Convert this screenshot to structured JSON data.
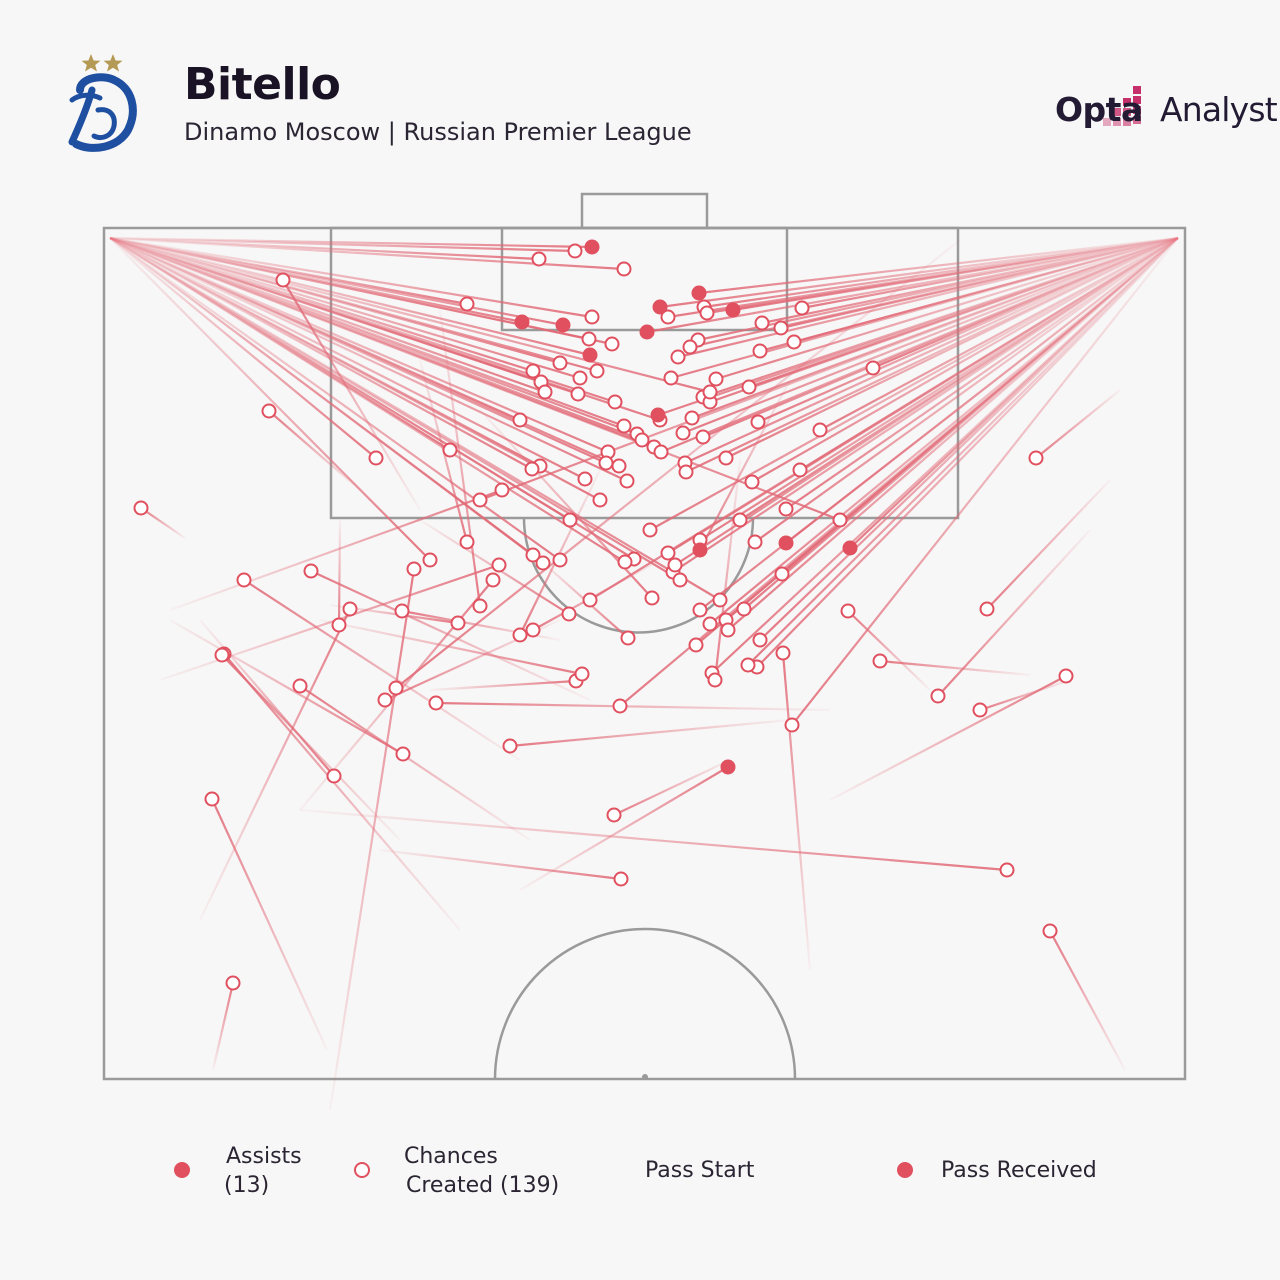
{
  "header": {
    "player": "Bitello",
    "subtitle": "Dinamo Moscow | Russian Premier League",
    "brand_a": "Opta",
    "brand_b": "Analyst"
  },
  "colors": {
    "accent": "#e0505f",
    "line": "#e26a77",
    "pitch_lines": "#9a9a9a",
    "club_blue": "#1f4fa0",
    "star_gold": "#b59a55",
    "brand_magenta": "#c6306a"
  },
  "legend": {
    "assists_label": "Assists",
    "assists_count": "(13)",
    "chances_label": "Chances",
    "chances_count": "Created (139)",
    "pass_start": "Pass Start",
    "pass_received": "Pass Received"
  },
  "chart_data": {
    "type": "scatter",
    "series": [
      {
        "name": "Assists",
        "points": [
          [
            592,
            247,
            110,
            238
          ],
          [
            522,
            322,
            110,
            238
          ],
          [
            563,
            325,
            110,
            238
          ],
          [
            590,
            355,
            110,
            238
          ],
          [
            660,
            307,
            1178,
            238
          ],
          [
            699,
            293,
            1178,
            238
          ],
          [
            733,
            310,
            1178,
            238
          ],
          [
            647,
            332,
            1178,
            238
          ],
          [
            658,
            415,
            1178,
            238
          ],
          [
            700,
            550,
            790,
            380
          ],
          [
            786,
            543,
            1178,
            238
          ],
          [
            850,
            548,
            1178,
            238
          ],
          [
            728,
            767,
            520,
            890
          ]
        ]
      },
      {
        "name": "Chances Created",
        "points": [
          [
            539,
            259,
            110,
            238
          ],
          [
            575,
            251,
            110,
            238
          ],
          [
            624,
            269,
            110,
            238
          ],
          [
            283,
            280,
            420,
            510
          ],
          [
            467,
            304,
            110,
            238
          ],
          [
            592,
            317,
            110,
            238
          ],
          [
            668,
            317,
            1178,
            238
          ],
          [
            704,
            307,
            1178,
            238
          ],
          [
            707,
            313,
            1178,
            238
          ],
          [
            762,
            323,
            1178,
            238
          ],
          [
            781,
            328,
            1178,
            238
          ],
          [
            802,
            308,
            1178,
            238
          ],
          [
            794,
            342,
            1178,
            238
          ],
          [
            760,
            351,
            1178,
            238
          ],
          [
            698,
            340,
            1178,
            238
          ],
          [
            690,
            347,
            1178,
            238
          ],
          [
            678,
            357,
            1178,
            238
          ],
          [
            612,
            344,
            110,
            238
          ],
          [
            589,
            339,
            110,
            238
          ],
          [
            560,
            363,
            110,
            238
          ],
          [
            533,
            371,
            110,
            238
          ],
          [
            541,
            382,
            110,
            238
          ],
          [
            545,
            392,
            110,
            238
          ],
          [
            578,
            394,
            110,
            238
          ],
          [
            580,
            378,
            110,
            238
          ],
          [
            597,
            371,
            110,
            238
          ],
          [
            671,
            378,
            1178,
            238
          ],
          [
            716,
            379,
            1178,
            238
          ],
          [
            749,
            387,
            1178,
            238
          ],
          [
            703,
            397,
            1178,
            238
          ],
          [
            710,
            402,
            1178,
            238
          ],
          [
            692,
            418,
            1178,
            238
          ],
          [
            758,
            422,
            1178,
            238
          ],
          [
            873,
            368,
            1178,
            238
          ],
          [
            615,
            402,
            110,
            238
          ],
          [
            624,
            426,
            110,
            238
          ],
          [
            637,
            434,
            110,
            238
          ],
          [
            683,
            433,
            1178,
            238
          ],
          [
            703,
            437,
            1178,
            238
          ],
          [
            654,
            447,
            110,
            238
          ],
          [
            661,
            452,
            1178,
            238
          ],
          [
            685,
            463,
            1178,
            238
          ],
          [
            726,
            458,
            1178,
            238
          ],
          [
            752,
            482,
            1178,
            238
          ],
          [
            786,
            509,
            1178,
            238
          ],
          [
            608,
            452,
            110,
            238
          ],
          [
            606,
            463,
            110,
            238
          ],
          [
            619,
            466,
            110,
            238
          ],
          [
            627,
            481,
            110,
            238
          ],
          [
            585,
            479,
            110,
            238
          ],
          [
            540,
            466,
            110,
            238
          ],
          [
            532,
            469,
            110,
            238
          ],
          [
            376,
            458,
            110,
            238
          ],
          [
            269,
            411,
            360,
            490
          ],
          [
            141,
            508,
            185,
            538
          ],
          [
            502,
            490,
            170,
            610
          ],
          [
            467,
            542,
            420,
            360
          ],
          [
            533,
            555,
            110,
            238
          ],
          [
            543,
            563,
            110,
            238
          ],
          [
            634,
            559,
            110,
            238
          ],
          [
            625,
            562,
            110,
            238
          ],
          [
            668,
            553,
            1178,
            238
          ],
          [
            673,
            572,
            1178,
            238
          ],
          [
            675,
            565,
            1178,
            238
          ],
          [
            782,
            574,
            1178,
            238
          ],
          [
            755,
            542,
            1178,
            238
          ],
          [
            1036,
            458,
            1120,
            390
          ],
          [
            987,
            609,
            1110,
            480
          ],
          [
            938,
            696,
            1090,
            530
          ],
          [
            980,
            710,
            1070,
            680
          ],
          [
            1066,
            676,
            830,
            800
          ],
          [
            848,
            611,
            930,
            690
          ],
          [
            880,
            661,
            1030,
            675
          ],
          [
            783,
            653,
            810,
            970
          ],
          [
            757,
            667,
            1178,
            238
          ],
          [
            748,
            665,
            1178,
            238
          ],
          [
            744,
            609,
            1178,
            238
          ],
          [
            726,
            620,
            1178,
            238
          ],
          [
            710,
            624,
            1178,
            238
          ],
          [
            700,
            610,
            1178,
            238
          ],
          [
            696,
            645,
            1178,
            238
          ],
          [
            712,
            673,
            1178,
            238
          ],
          [
            715,
            680,
            740,
            460
          ],
          [
            652,
            598,
            480,
            410
          ],
          [
            628,
            638,
            540,
            560
          ],
          [
            569,
            614,
            420,
            520
          ],
          [
            533,
            630,
            660,
            560
          ],
          [
            520,
            635,
            600,
            470
          ],
          [
            480,
            606,
            440,
            310
          ],
          [
            493,
            580,
            300,
            810
          ],
          [
            499,
            565,
            160,
            680
          ],
          [
            414,
            569,
            330,
            1110
          ],
          [
            402,
            611,
            560,
            640
          ],
          [
            350,
            609,
            200,
            920
          ],
          [
            339,
            625,
            340,
            520
          ],
          [
            458,
            623,
            330,
            605
          ],
          [
            311,
            571,
            590,
            700
          ],
          [
            244,
            580,
            520,
            760
          ],
          [
            224,
            654,
            460,
            930
          ],
          [
            222,
            655,
            400,
            840
          ],
          [
            300,
            686,
            530,
            840
          ],
          [
            385,
            700,
            560,
            620
          ],
          [
            396,
            688,
            960,
            240
          ],
          [
            436,
            703,
            830,
            710
          ],
          [
            403,
            754,
            170,
            620
          ],
          [
            334,
            776,
            200,
            620
          ],
          [
            576,
            681,
            430,
            690
          ],
          [
            582,
            674,
            320,
            620
          ],
          [
            620,
            706,
            1178,
            238
          ],
          [
            510,
            746,
            790,
            720
          ],
          [
            614,
            815,
            730,
            760
          ],
          [
            621,
            879,
            380,
            850
          ],
          [
            1007,
            870,
            300,
            810
          ],
          [
            1050,
            931,
            1125,
            1070
          ],
          [
            212,
            799,
            327,
            1050
          ],
          [
            233,
            983,
            213,
            1070
          ],
          [
            792,
            725,
            1178,
            238
          ],
          [
            728,
            630,
            1178,
            238
          ],
          [
            700,
            540,
            1178,
            238
          ],
          [
            686,
            472,
            1178,
            238
          ],
          [
            710,
            392,
            110,
            238
          ],
          [
            642,
            440,
            110,
            238
          ],
          [
            660,
            420,
            110,
            238
          ],
          [
            600,
            500,
            110,
            238
          ],
          [
            570,
            520,
            110,
            238
          ],
          [
            740,
            520,
            1178,
            238
          ],
          [
            650,
            530,
            1178,
            238
          ],
          [
            560,
            560,
            110,
            238
          ],
          [
            590,
            600,
            1178,
            238
          ],
          [
            680,
            580,
            110,
            238
          ],
          [
            720,
            600,
            110,
            238
          ],
          [
            760,
            640,
            1178,
            238
          ],
          [
            430,
            560,
            110,
            238
          ],
          [
            450,
            450,
            110,
            238
          ],
          [
            800,
            470,
            1178,
            238
          ],
          [
            820,
            430,
            1178,
            238
          ],
          [
            520,
            420,
            110,
            238
          ],
          [
            480,
            500,
            1178,
            238
          ],
          [
            840,
            520,
            110,
            238
          ]
        ]
      }
    ]
  }
}
